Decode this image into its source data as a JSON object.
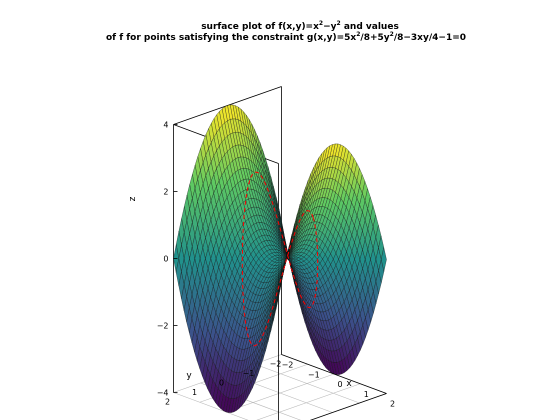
{
  "chart_data": {
    "type": "surface",
    "title_line1": {
      "pre": "surface plot of f(x,y)=x",
      "sup1": "2",
      "mid": "−y",
      "sup2": "2",
      "post": " and values"
    },
    "title_line2": {
      "pre": "of f for points satisfying the constraint g(x,y)=5x",
      "sup1": "2",
      "mid": "/8+5y",
      "sup2": "2",
      "post": "/8−3xy/4−1=0"
    },
    "xlabel": "x",
    "ylabel": "y",
    "zlabel": "z",
    "xlim": [
      -2,
      2
    ],
    "ylim": [
      -2,
      2
    ],
    "zlim": [
      -4,
      4
    ],
    "x_ticks": [
      "−2",
      "−1",
      "0",
      "1",
      "2"
    ],
    "y_ticks": [
      "−2",
      "−1",
      "0",
      "1",
      "2"
    ],
    "z_ticks": [
      "−4",
      "−2",
      "0",
      "2",
      "4"
    ],
    "surface": {
      "function": "x^2 - y^2",
      "colormap": "viridis",
      "colormap_stops": [
        "#440154",
        "#3b528b",
        "#21918c",
        "#5ec962",
        "#fde725"
      ]
    },
    "constraint_curve": {
      "color": "#ff0000",
      "style": "dashed"
    }
  }
}
